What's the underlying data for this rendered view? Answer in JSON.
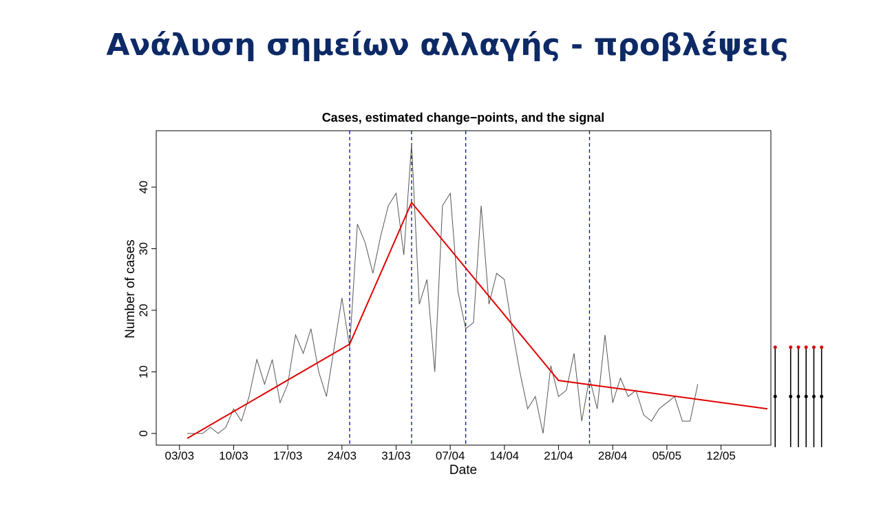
{
  "slide": {
    "title": "Ανάλυση σημείων αλλαγής - προβλέψεις"
  },
  "colors": {
    "title": "#0d2a66",
    "cases_line": "#555555",
    "signal_line": "#e00000",
    "change_point_line": "#0000cc",
    "forecast_line": "#000000",
    "forecast_upper_point": "#e00000"
  },
  "chart_data": {
    "type": "line",
    "title": "Cases, estimated change−points, and the signal",
    "xlabel": "Date",
    "ylabel": "Number of cases",
    "ylim": [
      -1.5,
      49
    ],
    "yticks": [
      0,
      10,
      20,
      30,
      40
    ],
    "xticks": [
      "03/03",
      "10/03",
      "17/03",
      "24/03",
      "31/03",
      "07/04",
      "14/04",
      "21/04",
      "28/04",
      "05/05",
      "12/05"
    ],
    "x_start": "04/03",
    "series": [
      {
        "name": "Cases",
        "values": [
          0,
          0,
          0,
          1,
          0,
          1,
          4,
          2,
          6,
          12,
          8,
          12,
          5,
          8,
          16,
          13,
          17,
          10,
          6,
          14,
          22,
          14,
          34,
          31,
          26,
          32,
          37,
          39,
          29,
          47,
          21,
          25,
          10,
          37,
          39,
          23,
          17,
          18,
          37,
          21,
          26,
          25,
          17,
          10,
          4,
          6,
          0,
          11,
          6,
          7,
          13,
          2,
          9,
          4,
          16,
          5,
          9,
          6,
          7,
          3,
          2,
          4,
          5,
          6,
          2,
          2,
          8
        ]
      },
      {
        "name": "Signal",
        "points": [
          [
            0,
            -0.8
          ],
          [
            21,
            14.5
          ],
          [
            29,
            37.5
          ],
          [
            48,
            8.6
          ],
          [
            75,
            4.0
          ]
        ]
      }
    ],
    "change_points": [
      21,
      29,
      36,
      52
    ],
    "forecast": {
      "day_indices": [
        76,
        78,
        79,
        80,
        81,
        82
      ],
      "point": [
        6,
        6,
        6,
        6,
        6,
        6
      ],
      "upper": [
        14,
        14,
        14,
        14,
        14,
        14
      ]
    }
  }
}
